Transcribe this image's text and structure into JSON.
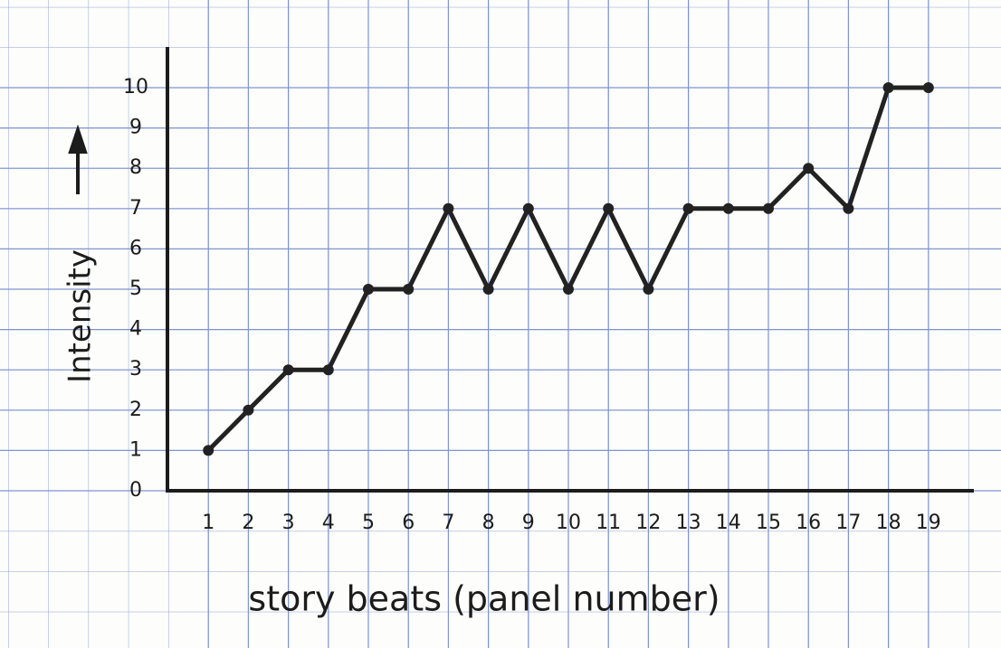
{
  "chart_data": {
    "type": "line",
    "x_label": "story beats (panel number)",
    "y_label": "Intensity",
    "x": [
      1,
      2,
      3,
      4,
      5,
      6,
      7,
      8,
      9,
      10,
      11,
      12,
      13,
      14,
      15,
      16,
      17,
      18,
      19
    ],
    "series": [
      {
        "color": "#222222",
        "values": [
          1,
          2,
          3,
          3,
          5,
          5,
          7,
          5,
          7,
          5,
          7,
          5,
          7,
          7,
          7,
          8,
          7,
          10,
          10
        ]
      }
    ],
    "xlim": [
      0,
      20
    ],
    "xticks": [
      1,
      2,
      3,
      4,
      5,
      6,
      7,
      8,
      9,
      10,
      11,
      12,
      13,
      14,
      15,
      16,
      17,
      18,
      19
    ],
    "ylim": [
      0,
      10
    ],
    "yticks": [
      0,
      1,
      2,
      3,
      4,
      5,
      6,
      7,
      8,
      9,
      10
    ],
    "grid": true
  }
}
